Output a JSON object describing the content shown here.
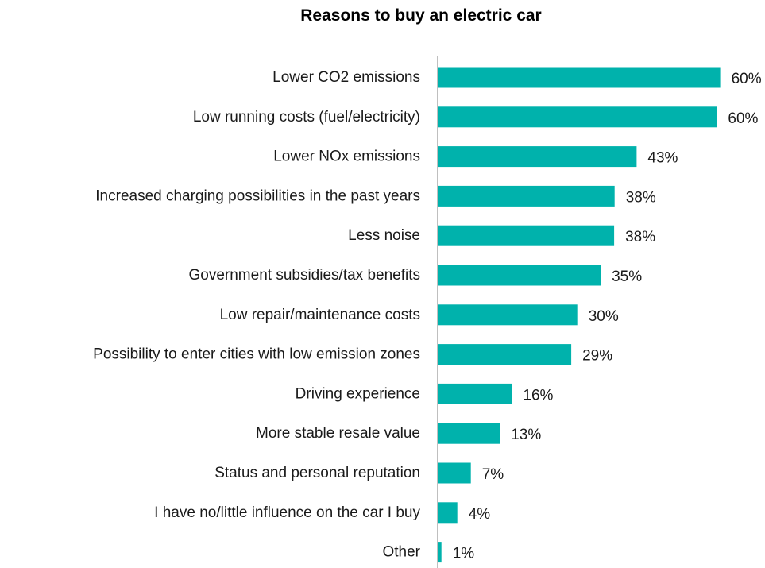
{
  "chart_data": {
    "type": "bar",
    "orientation": "horizontal",
    "title": "Reasons to buy an electric car",
    "categories": [
      "Lower CO2 emissions",
      "Low running costs (fuel/electricity)",
      "Lower NOx emissions",
      "Increased charging possibilities in the past years",
      "Less noise",
      "Government subsidies/tax benefits",
      "Low repair/maintenance costs",
      "Possibility to enter cities with low emission zones",
      "Driving experience",
      "More stable resale value",
      "Status and personal reputation",
      "I have no/little influence on the car I buy",
      "Other"
    ],
    "values": [
      60.5,
      59.8,
      42.6,
      37.9,
      37.8,
      34.9,
      29.9,
      28.6,
      15.9,
      13.3,
      7.1,
      4.2,
      0.8
    ],
    "value_labels": [
      "60%",
      "60%",
      "43%",
      "38%",
      "38%",
      "35%",
      "30%",
      "29%",
      "16%",
      "13%",
      "7%",
      "4%",
      "1%"
    ],
    "xlabel": "",
    "ylabel": "",
    "xlim": [
      0,
      65
    ],
    "grid": false,
    "legend": "none",
    "bar_color": "#00b2ac",
    "axis_color": "#bfbfbf"
  }
}
